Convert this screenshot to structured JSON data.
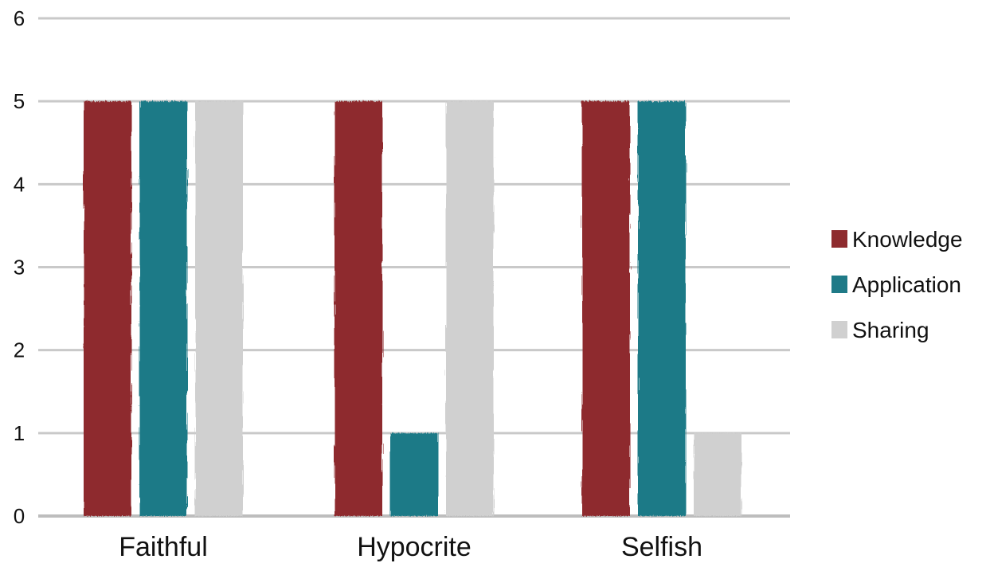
{
  "chart_data": {
    "type": "bar",
    "categories": [
      "Faithful",
      "Hypocrite",
      "Selfish"
    ],
    "series": [
      {
        "name": "Knowledge",
        "values": [
          5,
          5,
          5
        ],
        "color": "#8e2b2e"
      },
      {
        "name": "Application",
        "values": [
          5,
          1,
          5
        ],
        "color": "#1f7a87"
      },
      {
        "name": "Sharing",
        "values": [
          5,
          5,
          1
        ],
        "color": "#d0d0d0"
      }
    ],
    "title": "",
    "xlabel": "",
    "ylabel": "",
    "ylim": [
      0,
      6
    ],
    "yticks": [
      "0",
      "1",
      "2",
      "3",
      "4",
      "5",
      "6"
    ],
    "grid": true,
    "legend_position": "right"
  }
}
